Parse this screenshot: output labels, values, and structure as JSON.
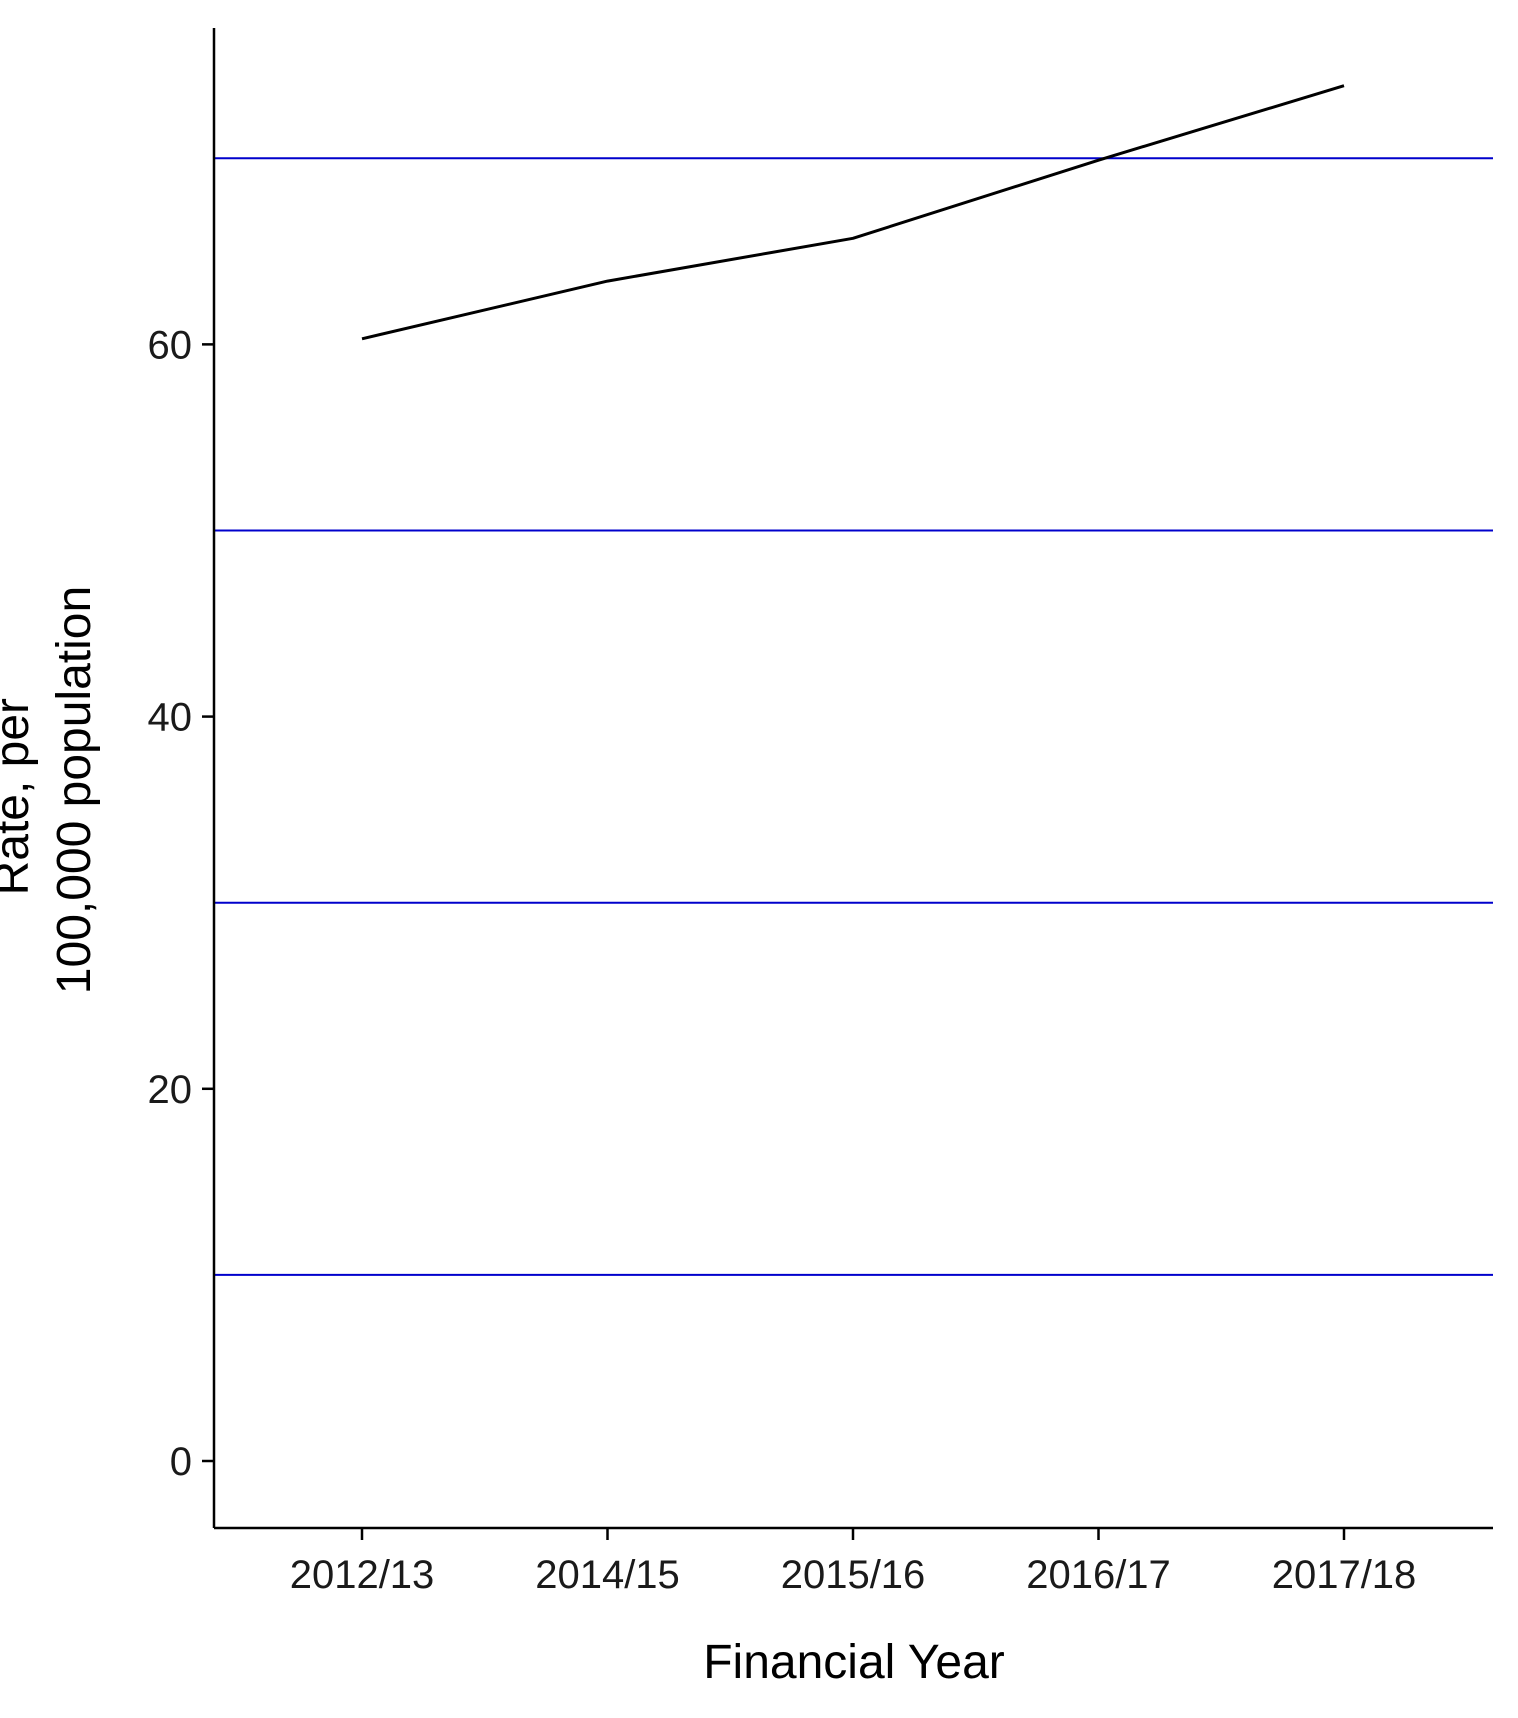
{
  "chart_data": {
    "type": "line",
    "title": "",
    "xlabel": "Financial Year",
    "ylabel_lines": [
      "Rate, per",
      "100,000 population"
    ],
    "categories": [
      "2012/13",
      "2014/15",
      "2015/16",
      "2016/17",
      "2017/18"
    ],
    "series": [
      {
        "values": [
          60.3,
          63.4,
          65.7,
          69.9,
          73.9
        ],
        "color": "#000000"
      }
    ],
    "y_ticks": [
      0,
      20,
      40,
      60
    ],
    "y_tick_labels": [
      "0",
      "20",
      "40",
      "60"
    ],
    "ylim": [
      -3.6,
      77
    ],
    "reference_lines": [
      10,
      30,
      50,
      70
    ],
    "reference_line_color": "#0000cc",
    "grid": false,
    "legend": "none"
  }
}
